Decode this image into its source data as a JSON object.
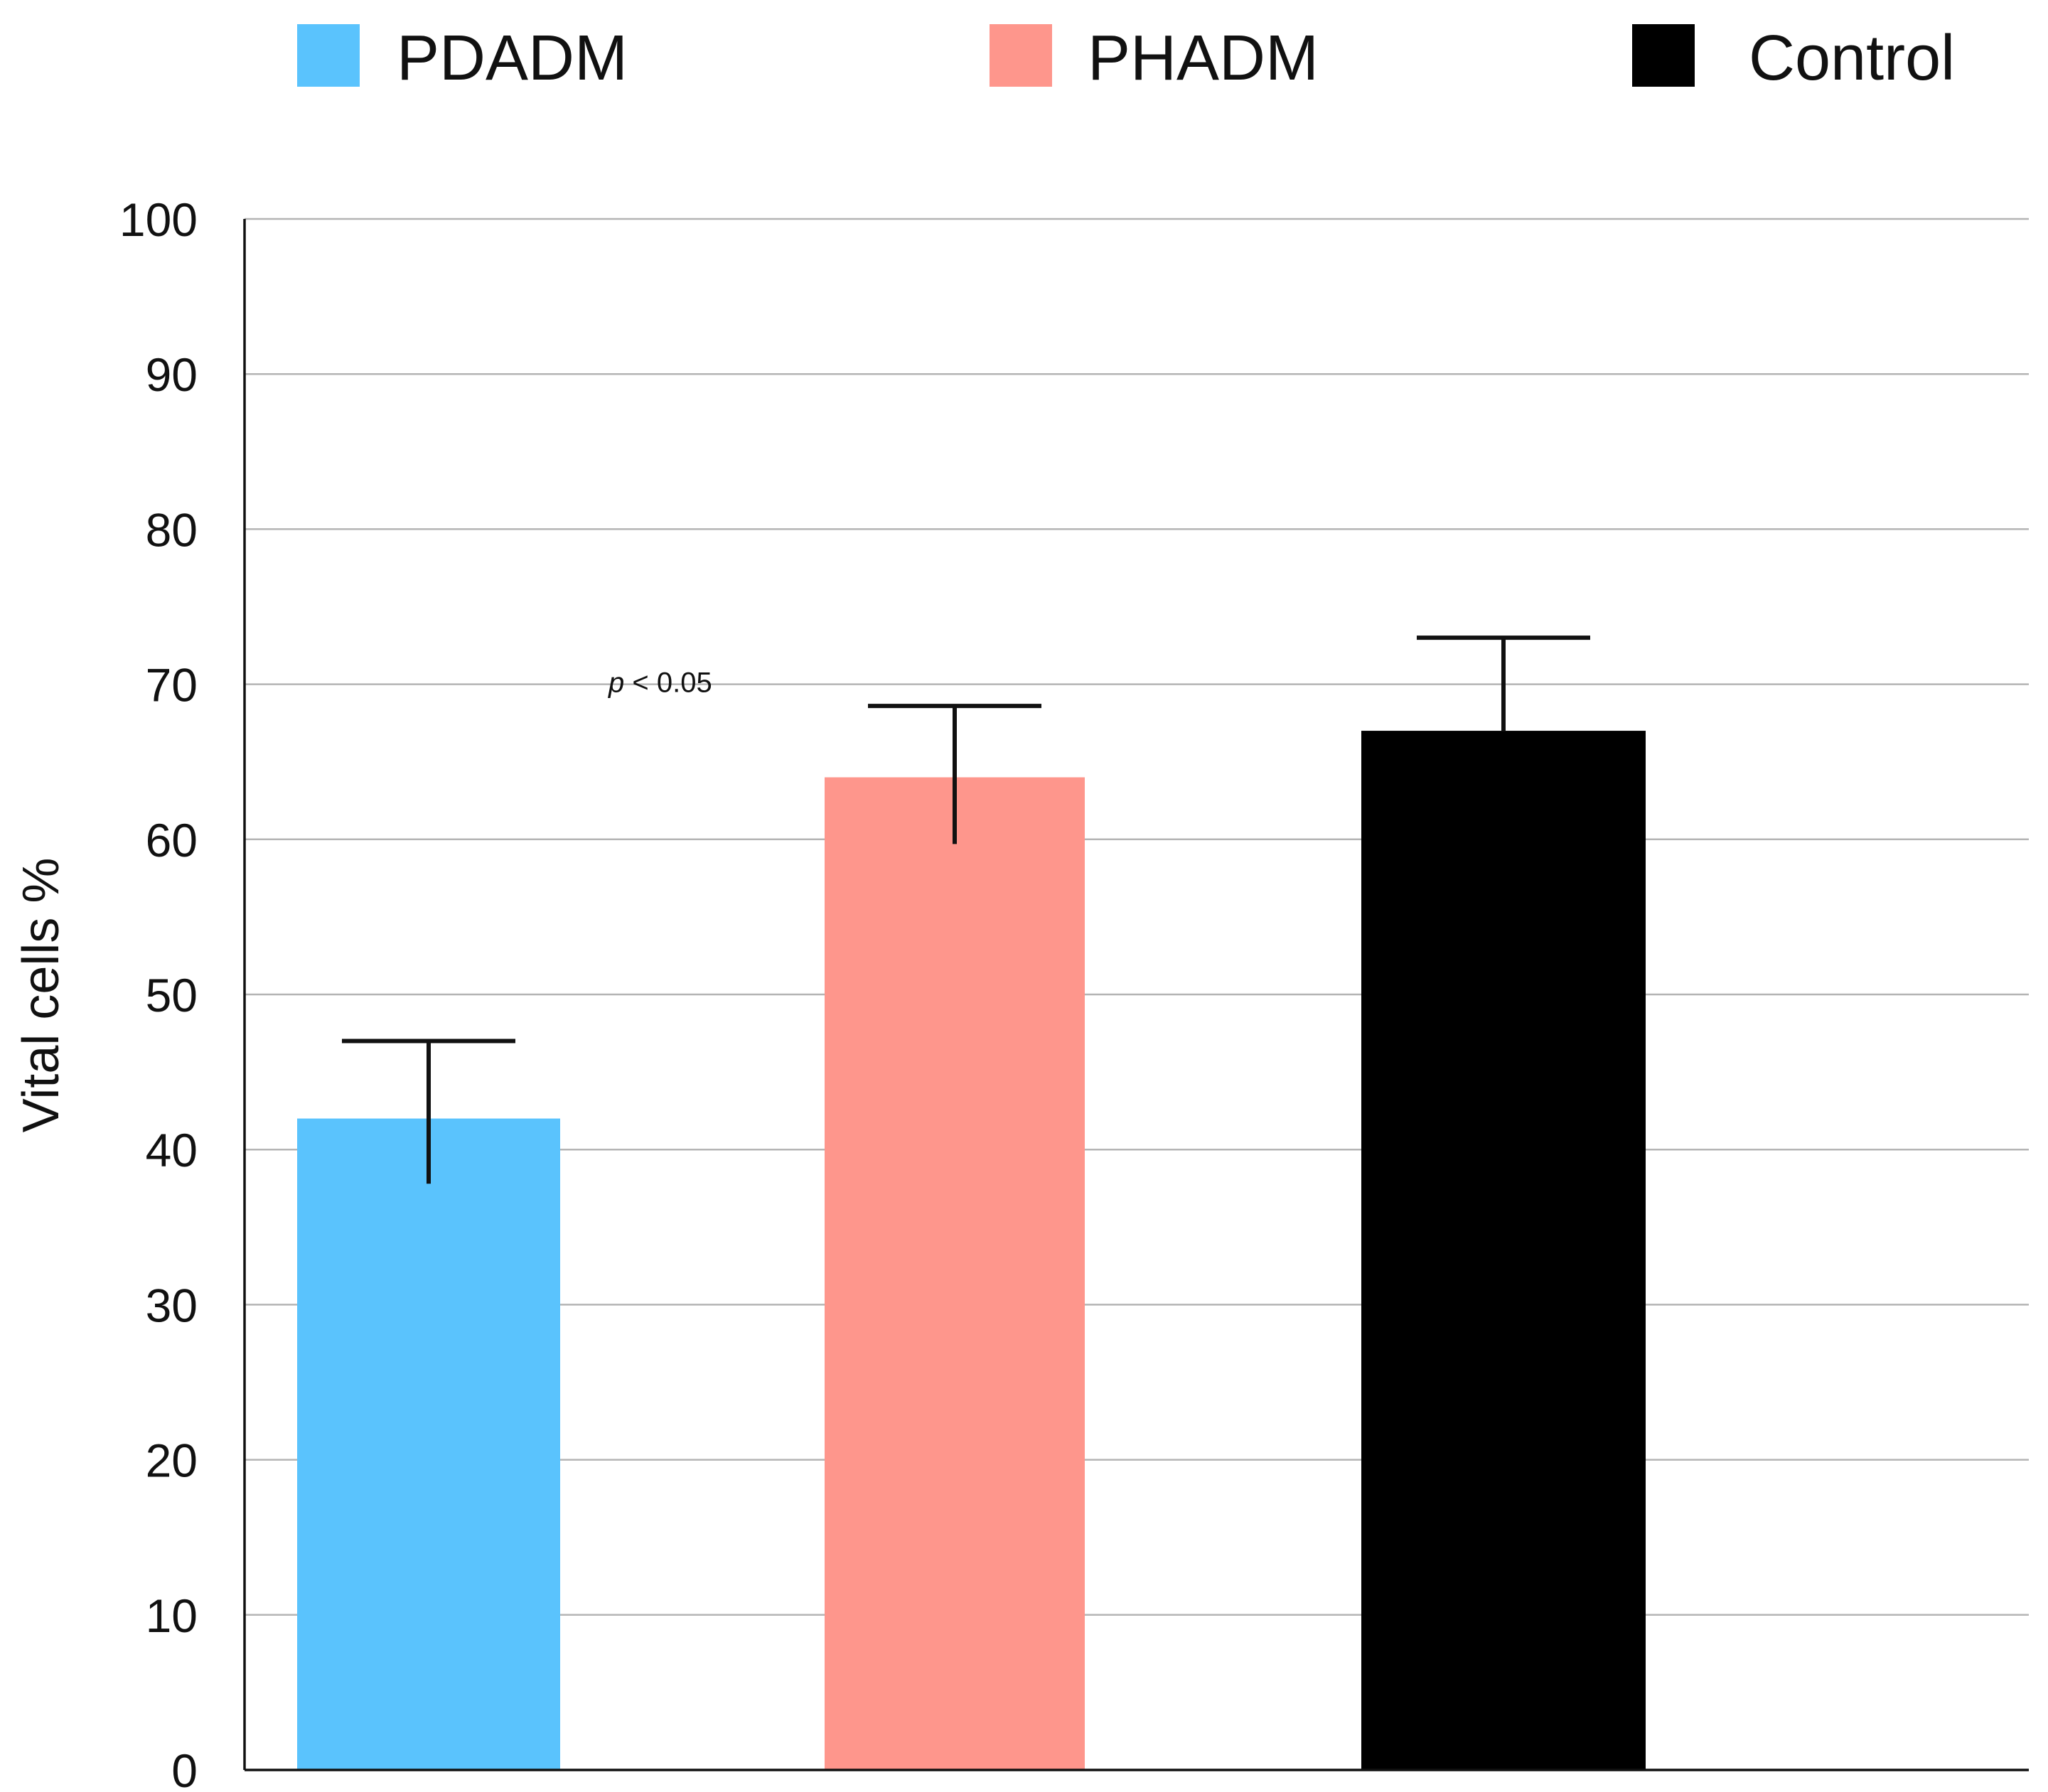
{
  "chart_data": {
    "type": "bar",
    "categories": [
      "PDADM",
      "PHADM",
      "Control"
    ],
    "values": [
      42,
      64,
      67
    ],
    "error_high": [
      47,
      68.6,
      73
    ],
    "error_low": [
      37.8,
      59.7,
      null
    ],
    "colors": [
      "#5ac3fd",
      "#fe968c",
      "#000000"
    ],
    "legend": [
      "PDADM",
      "PHADM",
      "Control"
    ],
    "legend_position": "top",
    "ylabel": "Vital cells %",
    "ylim": [
      0,
      100
    ],
    "yticks": [
      0,
      10,
      20,
      30,
      40,
      50,
      60,
      70,
      80,
      90,
      100
    ],
    "grid": true,
    "annotation": {
      "italic": "p",
      "text": " < 0.05",
      "x_category": 0.5,
      "y": 69.5
    }
  }
}
